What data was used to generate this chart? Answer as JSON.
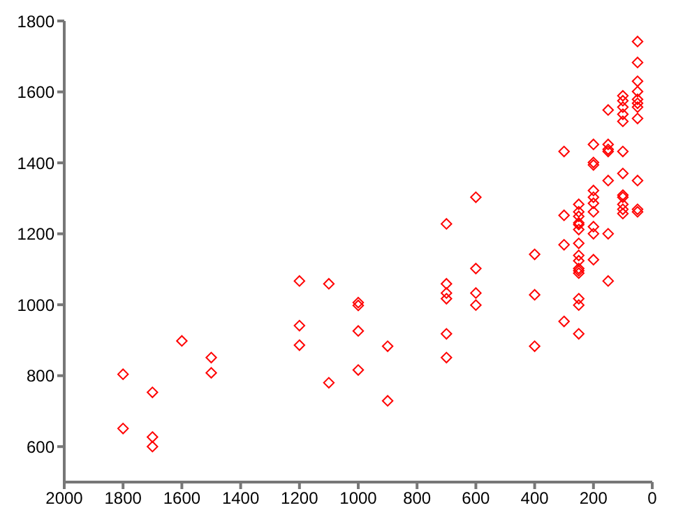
{
  "chart_data": {
    "type": "scatter",
    "marker": "diamond",
    "grid": false,
    "xlim": [
      2000,
      0
    ],
    "xticks": [
      2000,
      1800,
      1600,
      1400,
      1200,
      1000,
      800,
      600,
      400,
      200,
      0
    ],
    "ylim": [
      500,
      1800
    ],
    "yticks": [
      600,
      800,
      1000,
      1200,
      1400,
      1600,
      1800
    ],
    "series": [
      {
        "color": "#ff0000",
        "x": [
          1800,
          1800,
          1700,
          1700,
          1700,
          1600,
          1500,
          1500,
          1200,
          1200,
          1200,
          1100,
          1100,
          1000,
          1000,
          1000,
          1000,
          900,
          900,
          700,
          700,
          700,
          700,
          700,
          700,
          600,
          600,
          600,
          600,
          400,
          400,
          400,
          300,
          300,
          300,
          300,
          250,
          250,
          250,
          250,
          250,
          250,
          250,
          250,
          250,
          250,
          250,
          250,
          250,
          250,
          250,
          200,
          200,
          200,
          200,
          200,
          200,
          200,
          200,
          200,
          200,
          150,
          150,
          150,
          150,
          150,
          150,
          150,
          100,
          100,
          100,
          100,
          100,
          100,
          100,
          100,
          100,
          100,
          100,
          100,
          50,
          50,
          50,
          50,
          50,
          50,
          50,
          50,
          50,
          50,
          50
        ],
        "values": [
          804,
          651,
          753,
          627,
          600,
          898,
          851,
          808,
          1067,
          941,
          886,
          1059,
          780,
          1006,
          998,
          926,
          816,
          883,
          729,
          1228,
          1059,
          1033,
          1017,
          918,
          851,
          1303,
          1102,
          1033,
          999,
          1142,
          1028,
          883,
          1432,
          1252,
          1169,
          953,
          1283,
          1262,
          1249,
          1231,
          1226,
          1212,
          1173,
          1139,
          1124,
          1102,
          1096,
          1089,
          1017,
          999,
          918,
          1452,
          1401,
          1394,
          1322,
          1303,
          1286,
          1262,
          1220,
          1200,
          1127,
          1549,
          1452,
          1438,
          1432,
          1350,
          1200,
          1067,
          1589,
          1575,
          1557,
          1537,
          1517,
          1432,
          1370,
          1309,
          1303,
          1283,
          1269,
          1257,
          1742,
          1683,
          1630,
          1601,
          1579,
          1568,
          1557,
          1525,
          1350,
          1269,
          1262
        ]
      }
    ]
  }
}
